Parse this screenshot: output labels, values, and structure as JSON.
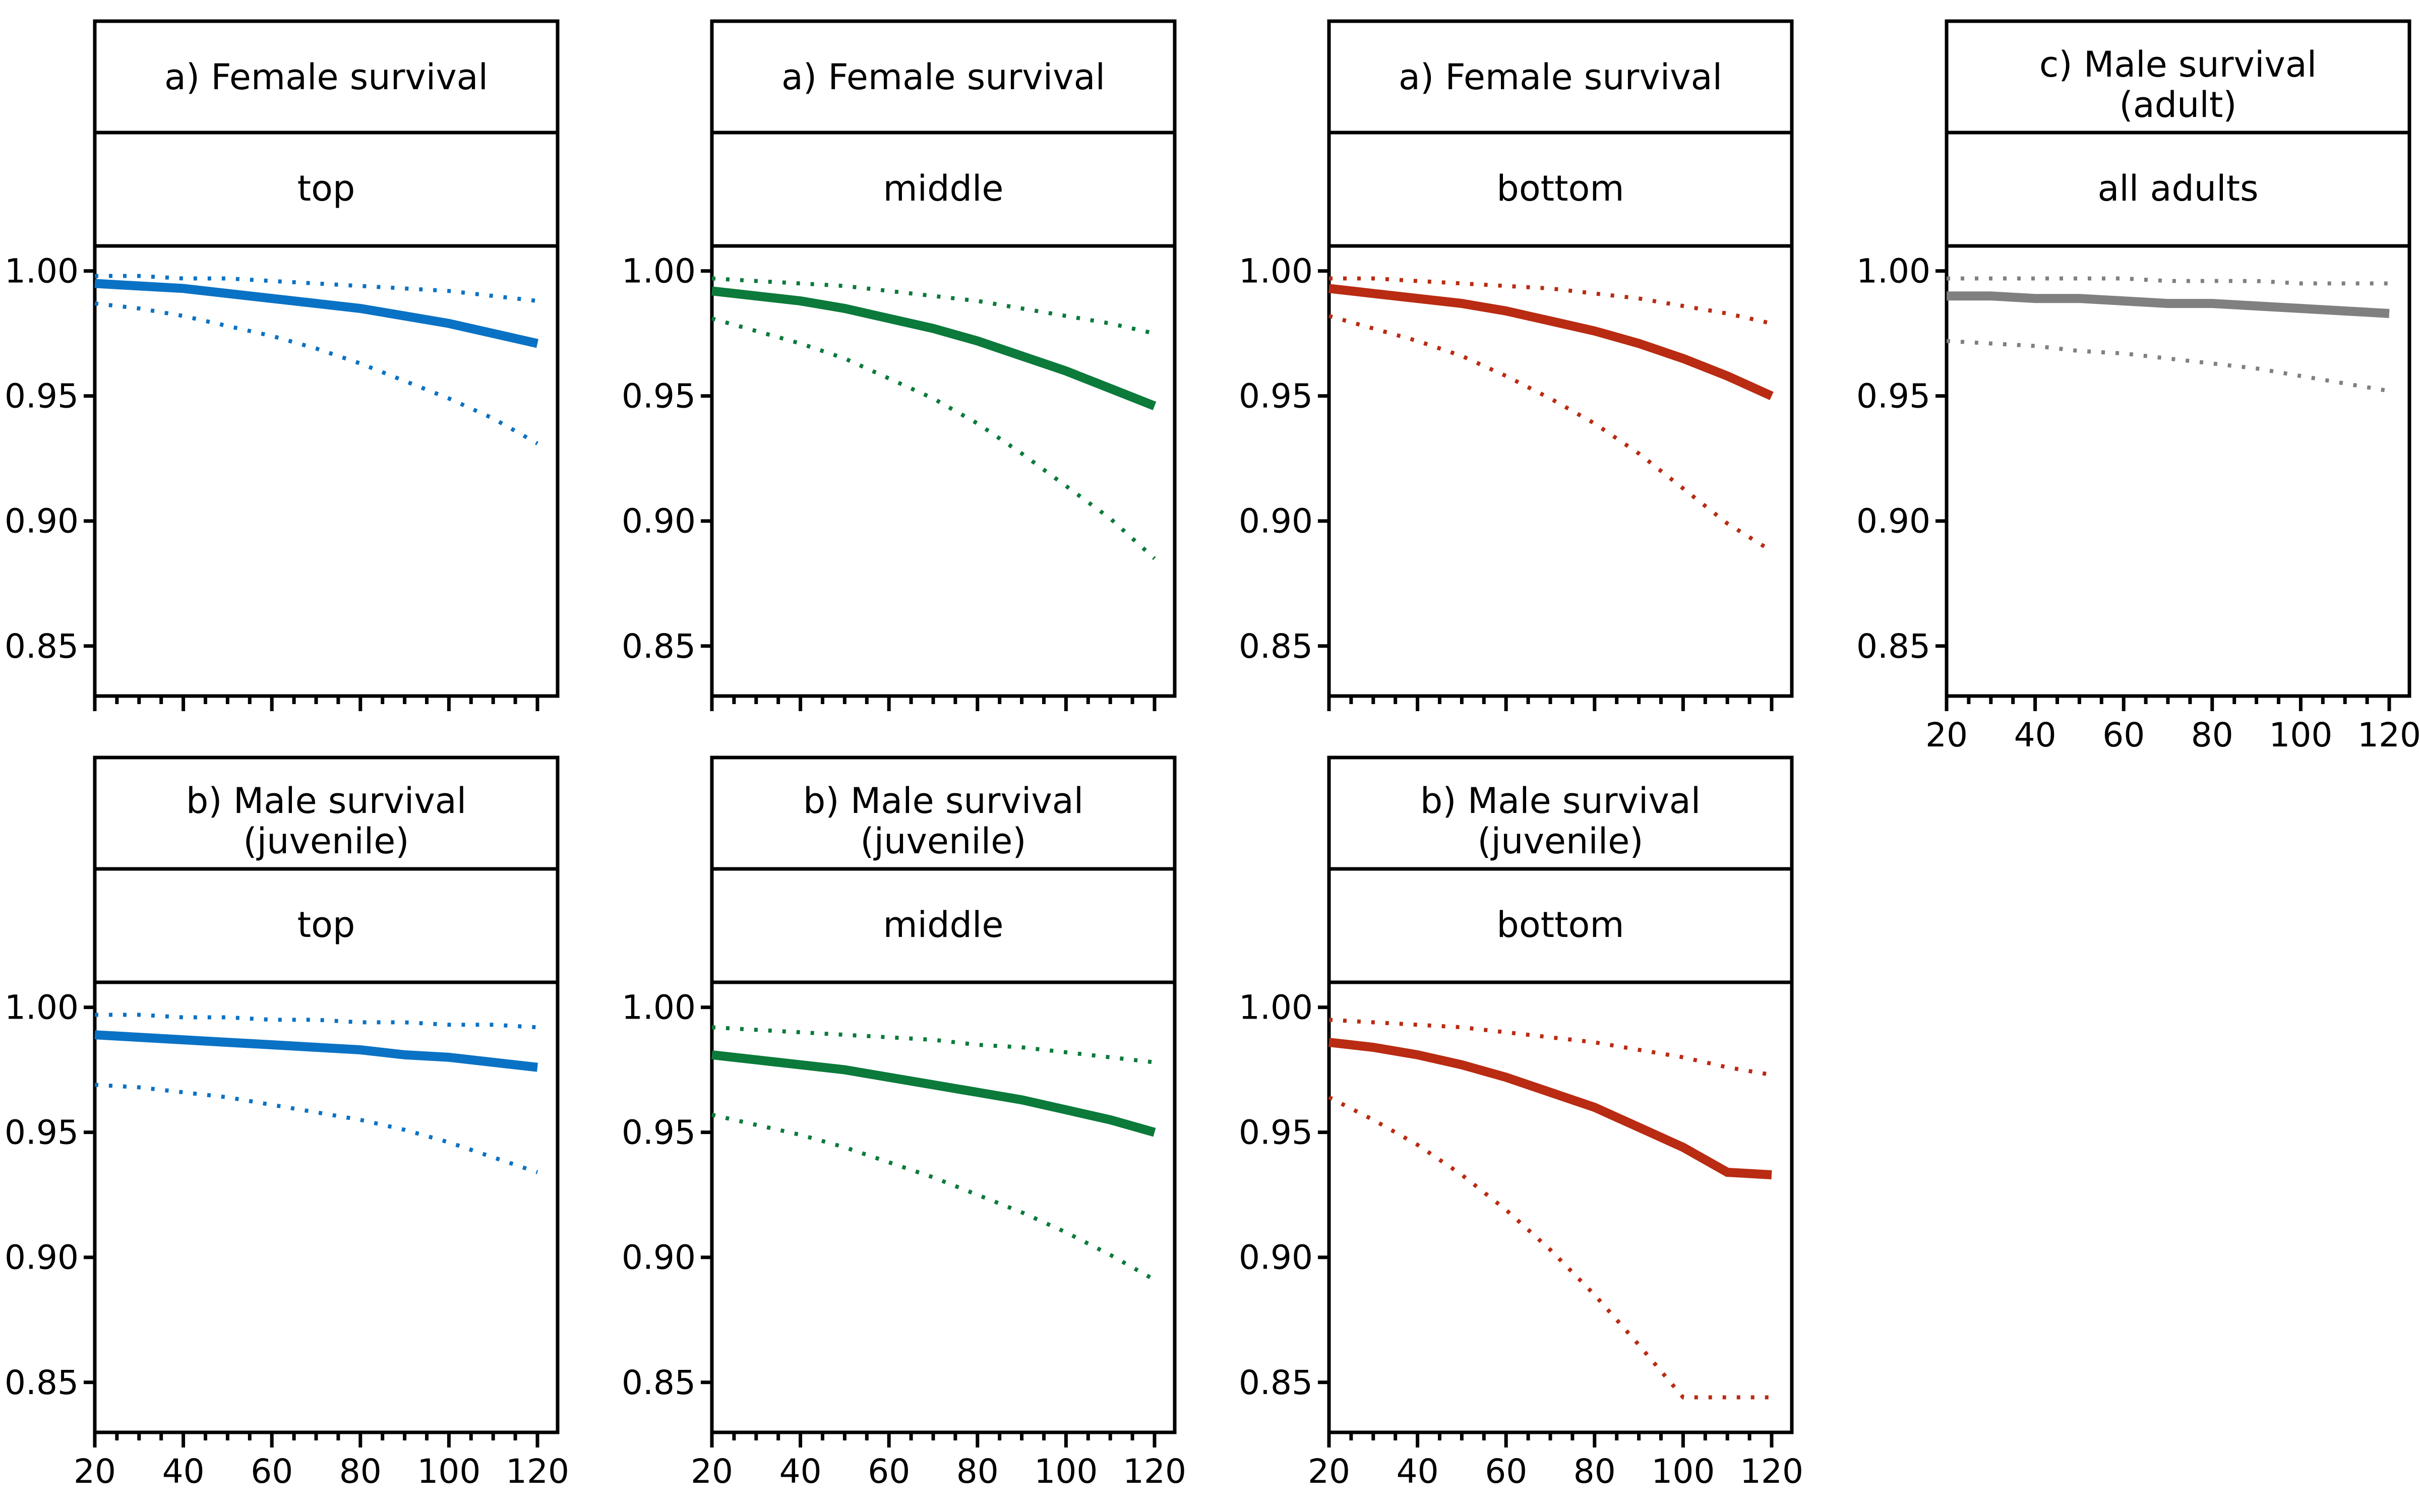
{
  "colors": {
    "top": "#0a72c4",
    "middle": "#0b7a3a",
    "bottom": "#b92b12",
    "all adults": "#808080"
  },
  "chart_data": [
    {
      "type": "line",
      "title": "a) Female survival",
      "subtitle": "top",
      "x": [
        20,
        30,
        40,
        50,
        60,
        70,
        80,
        90,
        100,
        110,
        120
      ],
      "xlim": [
        20,
        120
      ],
      "ylim": [
        0.83,
        1.01
      ],
      "yticks": [
        "1.00",
        "0.95",
        "0.90",
        "0.85"
      ],
      "xticks": [],
      "series": [
        {
          "role": "estimate",
          "values": [
            0.995,
            0.994,
            0.993,
            0.991,
            0.989,
            0.987,
            0.985,
            0.982,
            0.979,
            0.975,
            0.971
          ]
        },
        {
          "role": "upper",
          "values": [
            0.998,
            0.998,
            0.997,
            0.997,
            0.996,
            0.995,
            0.994,
            0.993,
            0.992,
            0.99,
            0.988
          ]
        },
        {
          "role": "lower",
          "values": [
            0.987,
            0.985,
            0.982,
            0.978,
            0.974,
            0.969,
            0.963,
            0.956,
            0.949,
            0.941,
            0.931
          ]
        }
      ]
    },
    {
      "type": "line",
      "title": "a) Female survival",
      "subtitle": "middle",
      "x": [
        20,
        30,
        40,
        50,
        60,
        70,
        80,
        90,
        100,
        110,
        120
      ],
      "xlim": [
        20,
        120
      ],
      "ylim": [
        0.83,
        1.01
      ],
      "yticks": [
        "1.00",
        "0.95",
        "0.90",
        "0.85"
      ],
      "xticks": [],
      "series": [
        {
          "role": "estimate",
          "values": [
            0.992,
            0.99,
            0.988,
            0.985,
            0.981,
            0.977,
            0.972,
            0.966,
            0.96,
            0.953,
            0.946
          ]
        },
        {
          "role": "upper",
          "values": [
            0.997,
            0.996,
            0.995,
            0.994,
            0.992,
            0.99,
            0.988,
            0.985,
            0.982,
            0.979,
            0.975
          ]
        },
        {
          "role": "lower",
          "values": [
            0.981,
            0.976,
            0.971,
            0.965,
            0.957,
            0.949,
            0.939,
            0.927,
            0.914,
            0.901,
            0.885
          ]
        }
      ]
    },
    {
      "type": "line",
      "title": "a) Female survival",
      "subtitle": "bottom",
      "x": [
        20,
        30,
        40,
        50,
        60,
        70,
        80,
        90,
        100,
        110,
        120
      ],
      "xlim": [
        20,
        120
      ],
      "ylim": [
        0.83,
        1.01
      ],
      "yticks": [
        "1.00",
        "0.95",
        "0.90",
        "0.85"
      ],
      "xticks": [],
      "series": [
        {
          "role": "estimate",
          "values": [
            0.993,
            0.991,
            0.989,
            0.987,
            0.984,
            0.98,
            0.976,
            0.971,
            0.965,
            0.958,
            0.95
          ]
        },
        {
          "role": "upper",
          "values": [
            0.997,
            0.997,
            0.996,
            0.995,
            0.994,
            0.993,
            0.991,
            0.989,
            0.986,
            0.983,
            0.979
          ]
        },
        {
          "role": "lower",
          "values": [
            0.982,
            0.977,
            0.972,
            0.966,
            0.958,
            0.949,
            0.939,
            0.927,
            0.913,
            0.899,
            0.888
          ]
        }
      ]
    },
    {
      "type": "line",
      "title": "c) Male survival",
      "title_line2": "(adult)",
      "subtitle": "all adults",
      "x": [
        20,
        30,
        40,
        50,
        60,
        70,
        80,
        90,
        100,
        110,
        120
      ],
      "xlim": [
        20,
        120
      ],
      "ylim": [
        0.83,
        1.01
      ],
      "yticks": [
        "1.00",
        "0.95",
        "0.90",
        "0.85"
      ],
      "xticks": [
        "20",
        "40",
        "60",
        "80",
        "100",
        "120"
      ],
      "series": [
        {
          "role": "estimate",
          "values": [
            0.99,
            0.99,
            0.989,
            0.989,
            0.988,
            0.987,
            0.987,
            0.986,
            0.985,
            0.984,
            0.983
          ]
        },
        {
          "role": "upper",
          "values": [
            0.997,
            0.997,
            0.997,
            0.997,
            0.997,
            0.996,
            0.996,
            0.996,
            0.995,
            0.995,
            0.995
          ]
        },
        {
          "role": "lower",
          "values": [
            0.972,
            0.971,
            0.97,
            0.968,
            0.967,
            0.965,
            0.963,
            0.961,
            0.958,
            0.955,
            0.952
          ]
        }
      ]
    },
    {
      "type": "line",
      "title": "b) Male survival",
      "title_line2": "(juvenile)",
      "subtitle": "top",
      "x": [
        20,
        30,
        40,
        50,
        60,
        70,
        80,
        90,
        100,
        110,
        120
      ],
      "xlim": [
        20,
        120
      ],
      "ylim": [
        0.83,
        1.01
      ],
      "yticks": [
        "1.00",
        "0.95",
        "0.90",
        "0.85"
      ],
      "xticks": [
        "20",
        "40",
        "60",
        "80",
        "100",
        "120"
      ],
      "series": [
        {
          "role": "estimate",
          "values": [
            0.989,
            0.988,
            0.987,
            0.986,
            0.985,
            0.984,
            0.983,
            0.981,
            0.98,
            0.978,
            0.976
          ]
        },
        {
          "role": "upper",
          "values": [
            0.997,
            0.997,
            0.996,
            0.996,
            0.995,
            0.995,
            0.994,
            0.994,
            0.993,
            0.993,
            0.992
          ]
        },
        {
          "role": "lower",
          "values": [
            0.969,
            0.968,
            0.966,
            0.964,
            0.961,
            0.958,
            0.955,
            0.951,
            0.946,
            0.94,
            0.934
          ]
        }
      ]
    },
    {
      "type": "line",
      "title": "b) Male survival",
      "title_line2": "(juvenile)",
      "subtitle": "middle",
      "x": [
        20,
        30,
        40,
        50,
        60,
        70,
        80,
        90,
        100,
        110,
        120
      ],
      "xlim": [
        20,
        120
      ],
      "ylim": [
        0.83,
        1.01
      ],
      "yticks": [
        "1.00",
        "0.95",
        "0.90",
        "0.85"
      ],
      "xticks": [
        "20",
        "40",
        "60",
        "80",
        "100",
        "120"
      ],
      "series": [
        {
          "role": "estimate",
          "values": [
            0.981,
            0.979,
            0.977,
            0.975,
            0.972,
            0.969,
            0.966,
            0.963,
            0.959,
            0.955,
            0.95
          ]
        },
        {
          "role": "upper",
          "values": [
            0.992,
            0.991,
            0.99,
            0.989,
            0.988,
            0.987,
            0.985,
            0.984,
            0.982,
            0.98,
            0.978
          ]
        },
        {
          "role": "lower",
          "values": [
            0.957,
            0.953,
            0.949,
            0.944,
            0.938,
            0.932,
            0.925,
            0.918,
            0.91,
            0.901,
            0.891
          ]
        }
      ]
    },
    {
      "type": "line",
      "title": "b) Male survival",
      "title_line2": "(juvenile)",
      "subtitle": "bottom",
      "x": [
        20,
        30,
        40,
        50,
        60,
        70,
        80,
        90,
        100,
        110,
        120
      ],
      "xlim": [
        20,
        120
      ],
      "ylim": [
        0.83,
        1.01
      ],
      "yticks": [
        "1.00",
        "0.95",
        "0.90",
        "0.85"
      ],
      "xticks": [
        "20",
        "40",
        "60",
        "80",
        "100",
        "120"
      ],
      "series": [
        {
          "role": "estimate",
          "values": [
            0.986,
            0.984,
            0.981,
            0.977,
            0.972,
            0.966,
            0.96,
            0.952,
            0.944,
            0.934,
            0.933
          ]
        },
        {
          "role": "upper",
          "values": [
            0.995,
            0.994,
            0.993,
            0.992,
            0.99,
            0.988,
            0.986,
            0.983,
            0.98,
            0.976,
            0.973
          ]
        },
        {
          "role": "lower",
          "values": [
            0.964,
            0.955,
            0.945,
            0.933,
            0.919,
            0.903,
            0.885,
            0.865,
            0.844,
            0.844,
            0.844
          ]
        }
      ]
    }
  ]
}
